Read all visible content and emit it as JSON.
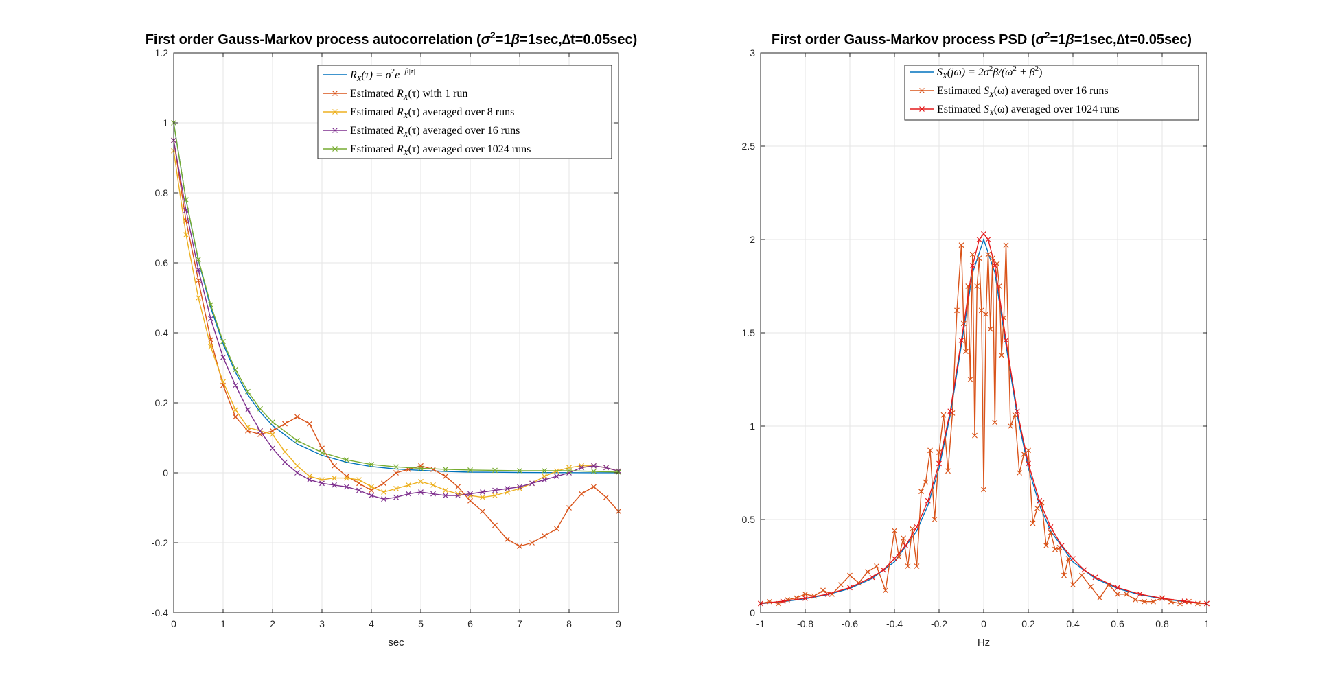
{
  "chart_data": [
    {
      "type": "line",
      "title": "First order Gauss-Markov process autocorrelation (σ²=1β=1sec,∆t=0.05sec)",
      "title_parts": {
        "prefix": "First order Gauss-Markov process autocorrelation (",
        "sigma": "σ",
        "sup": "2",
        "eq1": "=1",
        "beta": "β",
        "mid": "=1sec,",
        "delta": "∆",
        "suffix": "t=0.05sec)"
      },
      "xlabel": "sec",
      "ylabel": "",
      "xlim": [
        0,
        9
      ],
      "ylim": [
        -0.4,
        1.2
      ],
      "xticks": [
        0,
        1,
        2,
        3,
        4,
        5,
        6,
        7,
        8,
        9
      ],
      "yticks": [
        -0.4,
        -0.2,
        0,
        0.2,
        0.4,
        0.6,
        0.8,
        1,
        1.2
      ],
      "ytick_labels": [
        "-0.4",
        "-0.2",
        "0",
        "0.2",
        "0.4",
        "0.6",
        "0.8",
        "1",
        "1.2"
      ],
      "xtick_labels": [
        "0",
        "1",
        "2",
        "3",
        "4",
        "5",
        "6",
        "7",
        "8",
        "9"
      ],
      "grid": true,
      "legend_position": "top-right",
      "series": [
        {
          "name": "R_X(τ) = σ²e^{-β|τ|}",
          "legend": {
            "pre": "R",
            "sub": "X",
            "rest": "(τ) = σ",
            "sup": "2",
            "e": "e",
            "esup": "−β|τ|"
          },
          "color": "#0072bd",
          "marker": "none",
          "x": [
            0,
            0.25,
            0.5,
            0.75,
            1,
            1.25,
            1.5,
            1.75,
            2,
            2.5,
            3,
            3.5,
            4,
            4.5,
            5,
            5.5,
            6,
            6.5,
            7,
            7.5,
            8,
            8.5,
            9
          ],
          "y": [
            1,
            0.779,
            0.607,
            0.472,
            0.368,
            0.287,
            0.223,
            0.174,
            0.135,
            0.082,
            0.05,
            0.03,
            0.018,
            0.011,
            0.007,
            0.004,
            0.002,
            0.0015,
            0.001,
            0.0006,
            0.0003,
            0.0002,
            0.0001
          ]
        },
        {
          "name": "Estimated R̂_X(τ) with 1 run",
          "legend": {
            "pre": "Estimated ",
            "hat": "R",
            "sub": "X",
            "rest": "(τ) with 1 run"
          },
          "color": "#d95319",
          "marker": "x",
          "x": [
            0,
            0.25,
            0.5,
            0.75,
            1,
            1.25,
            1.5,
            1.75,
            2,
            2.25,
            2.5,
            2.75,
            3,
            3.25,
            3.5,
            3.75,
            4,
            4.25,
            4.5,
            4.75,
            5,
            5.25,
            5.5,
            5.75,
            6,
            6.25,
            6.5,
            6.75,
            7,
            7.25,
            7.5,
            7.75,
            8,
            8.25,
            8.5,
            8.75,
            9
          ],
          "y": [
            0.95,
            0.72,
            0.55,
            0.38,
            0.25,
            0.16,
            0.12,
            0.11,
            0.12,
            0.14,
            0.16,
            0.14,
            0.07,
            0.02,
            -0.01,
            -0.03,
            -0.05,
            -0.03,
            0.0,
            0.01,
            0.02,
            0.01,
            -0.01,
            -0.04,
            -0.08,
            -0.11,
            -0.15,
            -0.19,
            -0.21,
            -0.2,
            -0.18,
            -0.16,
            -0.1,
            -0.06,
            -0.04,
            -0.07,
            -0.11
          ]
        },
        {
          "name": "Estimated R̂_X(τ) averaged over 8 runs",
          "legend": {
            "pre": "Estimated ",
            "hat": "R",
            "sub": "X",
            "rest": "(τ) averaged over 8 runs"
          },
          "color": "#edb120",
          "marker": "x",
          "x": [
            0,
            0.25,
            0.5,
            0.75,
            1,
            1.25,
            1.5,
            1.75,
            2,
            2.25,
            2.5,
            2.75,
            3,
            3.25,
            3.5,
            3.75,
            4,
            4.25,
            4.5,
            4.75,
            5,
            5.25,
            5.5,
            5.75,
            6,
            6.25,
            6.5,
            6.75,
            7,
            7.25,
            7.5,
            7.75,
            8,
            8.25,
            8.5,
            8.75,
            9
          ],
          "y": [
            0.92,
            0.68,
            0.5,
            0.36,
            0.26,
            0.18,
            0.13,
            0.12,
            0.11,
            0.06,
            0.02,
            -0.01,
            -0.02,
            -0.015,
            -0.015,
            -0.02,
            -0.04,
            -0.055,
            -0.045,
            -0.035,
            -0.025,
            -0.035,
            -0.05,
            -0.06,
            -0.065,
            -0.07,
            -0.065,
            -0.055,
            -0.045,
            -0.03,
            -0.01,
            0.005,
            0.015,
            0.02,
            0.02,
            0.015,
            0.005
          ]
        },
        {
          "name": "Estimated R̂_X(τ) averaged over 16 runs",
          "legend": {
            "pre": "Estimated ",
            "hat": "R",
            "sub": "X",
            "rest": "(τ) averaged over 16 runs"
          },
          "color": "#7e2f8e",
          "marker": "x",
          "x": [
            0,
            0.25,
            0.5,
            0.75,
            1,
            1.25,
            1.5,
            1.75,
            2,
            2.25,
            2.5,
            2.75,
            3,
            3.25,
            3.5,
            3.75,
            4,
            4.25,
            4.5,
            4.75,
            5,
            5.25,
            5.5,
            5.75,
            6,
            6.25,
            6.5,
            6.75,
            7,
            7.25,
            7.5,
            7.75,
            8,
            8.25,
            8.5,
            8.75,
            9
          ],
          "y": [
            0.95,
            0.75,
            0.58,
            0.44,
            0.33,
            0.25,
            0.18,
            0.12,
            0.07,
            0.03,
            0.0,
            -0.02,
            -0.03,
            -0.035,
            -0.04,
            -0.05,
            -0.065,
            -0.075,
            -0.07,
            -0.06,
            -0.055,
            -0.06,
            -0.065,
            -0.065,
            -0.06,
            -0.055,
            -0.05,
            -0.045,
            -0.04,
            -0.03,
            -0.02,
            -0.01,
            0.0,
            0.015,
            0.02,
            0.015,
            0.005
          ]
        },
        {
          "name": "Estimated R̂_X(τ) averaged over 1024 runs",
          "legend": {
            "pre": "Estimated ",
            "hat": "R",
            "sub": "X",
            "rest": "(τ) averaged over 1024 runs"
          },
          "color": "#77ac30",
          "marker": "x",
          "x": [
            0,
            0.25,
            0.5,
            0.75,
            1,
            1.25,
            1.5,
            1.75,
            2,
            2.5,
            3,
            3.5,
            4,
            4.5,
            5,
            5.5,
            6,
            6.5,
            7,
            7.5,
            8,
            8.5,
            9
          ],
          "y": [
            1,
            0.78,
            0.61,
            0.48,
            0.375,
            0.295,
            0.232,
            0.183,
            0.145,
            0.092,
            0.058,
            0.037,
            0.024,
            0.017,
            0.013,
            0.01,
            0.008,
            0.007,
            0.006,
            0.006,
            0.006,
            0.004,
            0.002
          ]
        }
      ]
    },
    {
      "type": "line",
      "title": "First order Gauss-Markov process PSD (σ²=1β=1sec,∆t=0.05sec)",
      "title_parts": {
        "prefix": "First order Gauss-Markov process PSD (",
        "sigma": "σ",
        "sup": "2",
        "eq1": "=1",
        "beta": "β",
        "mid": "=1sec,",
        "delta": "∆",
        "suffix": "t=0.05sec)"
      },
      "xlabel": "Hz",
      "ylabel": "",
      "xlim": [
        -1,
        1
      ],
      "ylim": [
        0,
        3
      ],
      "xticks": [
        -1,
        -0.8,
        -0.6,
        -0.4,
        -0.2,
        0,
        0.2,
        0.4,
        0.6,
        0.8,
        1
      ],
      "xtick_labels": [
        "-1",
        "-0.8",
        "-0.6",
        "-0.4",
        "-0.2",
        "0",
        "0.2",
        "0.4",
        "0.6",
        "0.8",
        "1"
      ],
      "yticks": [
        0,
        0.5,
        1,
        1.5,
        2,
        2.5,
        3
      ],
      "ytick_labels": [
        "0",
        "0.5",
        "1",
        "1.5",
        "2",
        "2.5",
        "3"
      ],
      "grid": true,
      "legend_position": "top-right",
      "series": [
        {
          "name": "S_X(jω) = 2σ²β/(ω² + β²)",
          "legend": {
            "pre": "S",
            "sub": "X",
            "rest": "(jω) = 2σ",
            "sup": "2",
            "rest2": "β/(ω",
            "sup2": "2",
            "rest3": " + β",
            "sup3": "2",
            "rest4": ")"
          },
          "color": "#0072bd",
          "marker": "none",
          "x": [
            -1,
            -0.9,
            -0.8,
            -0.7,
            -0.6,
            -0.5,
            -0.4,
            -0.3,
            -0.25,
            -0.2,
            -0.15,
            -0.1,
            -0.05,
            0,
            0.05,
            0.1,
            0.15,
            0.2,
            0.25,
            0.3,
            0.4,
            0.5,
            0.6,
            0.7,
            0.8,
            0.9,
            1
          ],
          "y": [
            0.049,
            0.06,
            0.075,
            0.097,
            0.13,
            0.184,
            0.273,
            0.439,
            0.577,
            0.776,
            1.059,
            1.434,
            1.821,
            2.0,
            1.821,
            1.434,
            1.059,
            0.776,
            0.577,
            0.439,
            0.273,
            0.184,
            0.13,
            0.097,
            0.075,
            0.06,
            0.049
          ]
        },
        {
          "name": "Estimated Ŝ_X(ω) averaged over 16 runs",
          "legend": {
            "pre": "Estimated ",
            "hat": "S",
            "sub": "X",
            "rest": "(ω) averaged over 16 runs"
          },
          "color": "#d95319",
          "marker": "x",
          "x": [
            -1,
            -0.96,
            -0.92,
            -0.88,
            -0.84,
            -0.8,
            -0.76,
            -0.72,
            -0.68,
            -0.64,
            -0.6,
            -0.56,
            -0.52,
            -0.48,
            -0.44,
            -0.4,
            -0.38,
            -0.36,
            -0.34,
            -0.32,
            -0.3,
            -0.28,
            -0.26,
            -0.24,
            -0.22,
            -0.2,
            -0.18,
            -0.16,
            -0.14,
            -0.12,
            -0.1,
            -0.09,
            -0.08,
            -0.07,
            -0.06,
            -0.05,
            -0.04,
            -0.03,
            -0.02,
            -0.01,
            0,
            0.01,
            0.02,
            0.03,
            0.04,
            0.05,
            0.06,
            0.07,
            0.08,
            0.09,
            0.1,
            0.12,
            0.14,
            0.16,
            0.18,
            0.2,
            0.22,
            0.24,
            0.26,
            0.28,
            0.3,
            0.32,
            0.34,
            0.36,
            0.38,
            0.4,
            0.44,
            0.48,
            0.52,
            0.56,
            0.6,
            0.64,
            0.68,
            0.72,
            0.76,
            0.8,
            0.84,
            0.88,
            0.92,
            0.96,
            1
          ],
          "y": [
            0.05,
            0.06,
            0.05,
            0.07,
            0.08,
            0.1,
            0.09,
            0.12,
            0.1,
            0.15,
            0.2,
            0.16,
            0.22,
            0.25,
            0.12,
            0.44,
            0.3,
            0.4,
            0.25,
            0.45,
            0.25,
            0.65,
            0.7,
            0.87,
            0.5,
            0.86,
            1.06,
            0.76,
            1.07,
            1.62,
            1.97,
            1.55,
            1.4,
            1.75,
            1.25,
            1.92,
            0.95,
            1.75,
            1.9,
            1.62,
            0.66,
            1.6,
            1.92,
            1.52,
            1.9,
            1.02,
            1.87,
            1.75,
            1.38,
            1.58,
            1.97,
            1.0,
            1.06,
            0.75,
            0.85,
            0.87,
            0.48,
            0.56,
            0.59,
            0.36,
            0.43,
            0.34,
            0.35,
            0.2,
            0.29,
            0.15,
            0.2,
            0.14,
            0.08,
            0.15,
            0.1,
            0.1,
            0.07,
            0.06,
            0.06,
            0.08,
            0.06,
            0.05,
            0.06,
            0.05,
            0.05
          ]
        },
        {
          "name": "Estimated Ŝ_X(ω) averaged over 1024 runs",
          "legend": {
            "pre": "Estimated ",
            "hat": "S",
            "sub": "X",
            "rest": "(ω) averaged over 1024 runs"
          },
          "color": "#e41a1c",
          "marker": "x",
          "x": [
            -1,
            -0.9,
            -0.8,
            -0.7,
            -0.6,
            -0.5,
            -0.45,
            -0.4,
            -0.35,
            -0.3,
            -0.25,
            -0.2,
            -0.15,
            -0.1,
            -0.05,
            -0.02,
            0,
            0.02,
            0.05,
            0.1,
            0.15,
            0.2,
            0.25,
            0.3,
            0.35,
            0.4,
            0.45,
            0.5,
            0.6,
            0.7,
            0.8,
            0.9,
            1
          ],
          "y": [
            0.05,
            0.062,
            0.078,
            0.1,
            0.135,
            0.19,
            0.23,
            0.29,
            0.36,
            0.46,
            0.6,
            0.8,
            1.08,
            1.46,
            1.86,
            2.0,
            2.03,
            2.0,
            1.86,
            1.46,
            1.08,
            0.8,
            0.6,
            0.46,
            0.36,
            0.29,
            0.23,
            0.19,
            0.135,
            0.1,
            0.078,
            0.062,
            0.05
          ]
        }
      ]
    }
  ]
}
